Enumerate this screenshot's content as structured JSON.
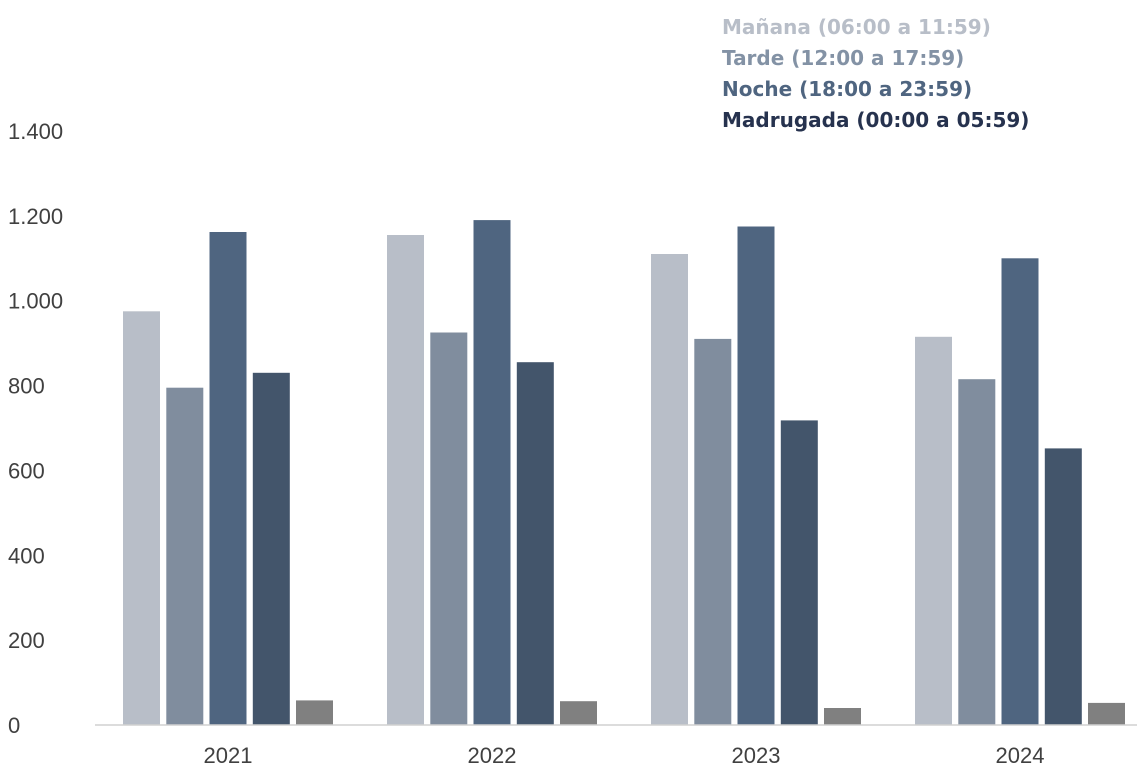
{
  "chart_data": {
    "type": "bar",
    "title": "",
    "xlabel": "",
    "ylabel": "",
    "categories": [
      "2021",
      "2022",
      "2023",
      "2024"
    ],
    "ylim": [
      0,
      1400
    ],
    "yticks": [
      0,
      200,
      400,
      600,
      800,
      1000,
      1200,
      1400
    ],
    "ytick_labels": [
      "0",
      "200",
      "400",
      "600",
      "800",
      "1.000",
      "1.200",
      "1.400"
    ],
    "grid": false,
    "legend_position": "top-right",
    "legend": [
      "Mañana (06:00 a 11:59)",
      "Tarde (12:00 a 17:59)",
      "Noche (18:00 a 23:59)",
      "Madrugada (00:00 a 05:59)"
    ],
    "legend_colors": [
      "#b8bec8",
      "#8392a5",
      "#4f6580",
      "#26324e"
    ],
    "series": [
      {
        "name": "Mañana (06:00 a 11:59)",
        "color": "#b8bec8",
        "values": [
          975,
          1155,
          1110,
          915
        ]
      },
      {
        "name": "Tarde (12:00 a 17:59)",
        "color": "#808d9e",
        "values": [
          795,
          925,
          910,
          815
        ]
      },
      {
        "name": "Noche (18:00 a 23:59)",
        "color": "#4f6580",
        "values": [
          1162,
          1190,
          1175,
          1100
        ]
      },
      {
        "name": "Madrugada (00:00 a 05:59)",
        "color": "#43556b",
        "values": [
          830,
          855,
          718,
          652
        ]
      },
      {
        "color": "#808080",
        "values": [
          58,
          56,
          40,
          52
        ]
      }
    ]
  }
}
